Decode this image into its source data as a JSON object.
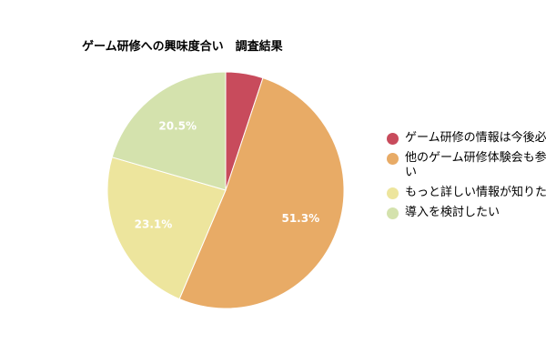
{
  "chart_data": {
    "type": "pie",
    "title": "ゲーム研修への興味度合い　調査結果",
    "categories": [
      "ゲーム研修の情報は今後必要ない",
      "他のゲーム研修体験会も参加したい",
      "もっと詳しい情報が知りたい",
      "導入を検討したい"
    ],
    "values": [
      5.1,
      51.3,
      23.1,
      20.5
    ],
    "data_labels": [
      "",
      "51.3%",
      "23.1%",
      "20.5%"
    ],
    "colors": [
      "#c84b5c",
      "#e8ab66",
      "#ede59d",
      "#d4e2ad"
    ],
    "start_angle": "12 o'clock",
    "direction": "clockwise",
    "legend_position": "right"
  }
}
